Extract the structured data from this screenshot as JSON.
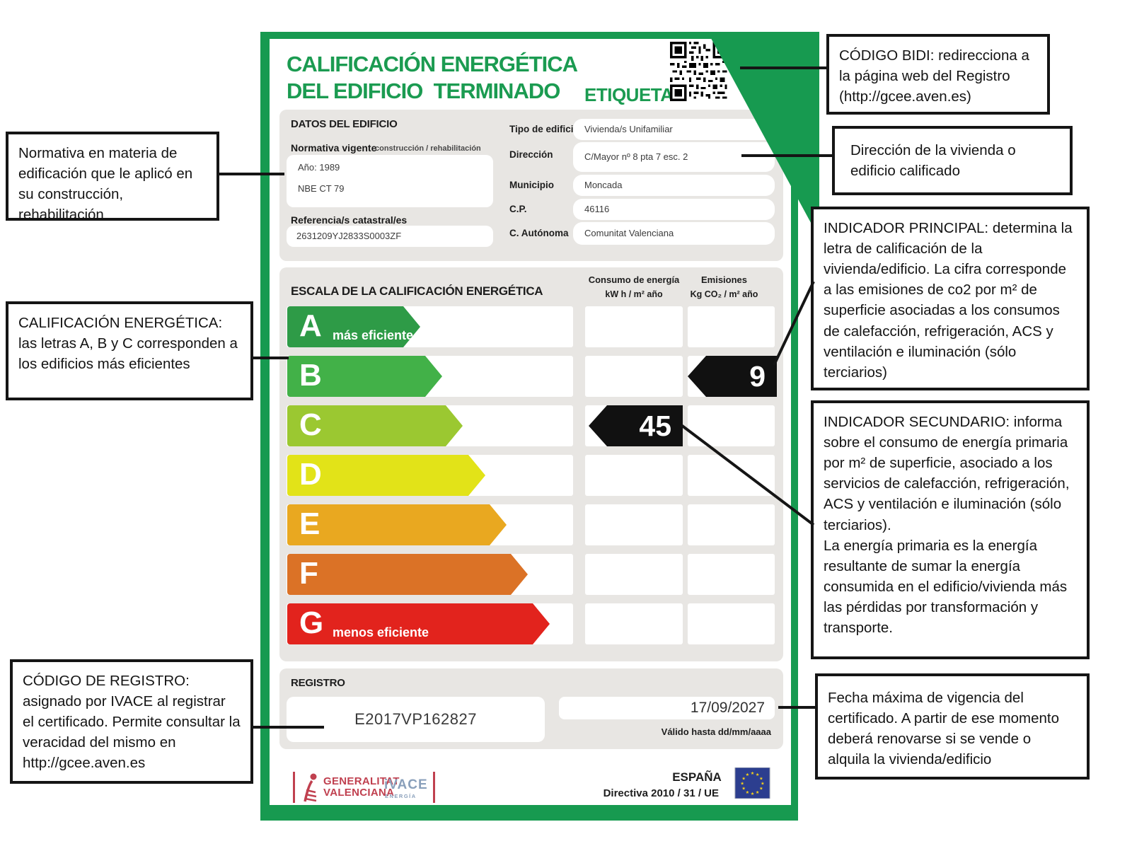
{
  "certificate": {
    "title_line1": "CALIFICACIÓN ENERGÉTICA",
    "title_line2": "DEL EDIFICIO  TERMINADO",
    "etiqueta_label": "ETIQUETA",
    "datos": {
      "heading": "DATOS DEL EDIFICIO",
      "normativa_label": "Normativa vigente",
      "normativa_sublabel": "construcción / rehabilitación",
      "normativa_year": "Año: 1989",
      "normativa_code": "NBE CT 79",
      "referencia_label": "Referencia/s catastral/es",
      "referencia_value": "2631209YJ2833S0003ZF",
      "fields": [
        {
          "label": "Tipo de edificio",
          "value": "Vivienda/s Unifamiliar"
        },
        {
          "label": "Dirección",
          "value": "C/Mayor nº 8 pta 7 esc. 2"
        },
        {
          "label": "Municipio",
          "value": "Moncada"
        },
        {
          "label": "C.P.",
          "value": "46116"
        },
        {
          "label": "C. Autónoma",
          "value": "Comunitat Valenciana"
        }
      ]
    },
    "scale": {
      "heading": "ESCALA DE LA CALIFICACIÓN ENERGÉTICA",
      "consumo_title": "Consumo de energía",
      "consumo_units": "kW h / m² año",
      "emisiones_title": "Emisiones",
      "emisiones_units": "Kg CO₂ / m²  año",
      "rows": [
        {
          "letter": "A",
          "note": "más eficiente",
          "color": "#2e9b47"
        },
        {
          "letter": "B",
          "color": "#42b148"
        },
        {
          "letter": "C",
          "color": "#9bc831"
        },
        {
          "letter": "D",
          "color": "#e2e318"
        },
        {
          "letter": "E",
          "color": "#e9a820"
        },
        {
          "letter": "F",
          "color": "#db7226"
        },
        {
          "letter": "G",
          "note": "menos eficiente",
          "color": "#e2231d"
        }
      ],
      "indicators": {
        "emisiones": {
          "row": "B",
          "value": "9"
        },
        "consumo": {
          "row": "C",
          "value": "45"
        }
      }
    },
    "registro": {
      "heading": "REGISTRO",
      "code": "E2017VP162827",
      "valid_until_date": "17/09/2027",
      "valid_until_note": "Válido hasta dd/mm/aaaa"
    },
    "footer": {
      "generalitat_line1": "GENERALITAT",
      "generalitat_line2": "VALENCIANA",
      "ivace": "iVACE",
      "ivace_sub": "ENERGÍA",
      "espana": "ESPAÑA",
      "directiva": "Directiva 2010 / 31 / UE"
    }
  },
  "callouts": {
    "normativa": "Normativa en materia de edificación que le aplicó en su construcción, rehabilitación",
    "calificacion": "CALIFICACIÓN ENERGÉTICA: las letras A, B y C corresponden a los edificios más eficientes",
    "codigo_registro": "CÓDIGO DE REGISTRO: asignado por IVACE al registrar el certificado. Permite consultar la veracidad del mismo en http://gcee.aven.es",
    "codigo_bidi": "CÓDIGO BIDI: redirecciona a la página web del Registro (http://gcee.aven.es)",
    "direccion": "Dirección de la vivienda o edificio calificado",
    "indicador_principal": "INDICADOR PRINCIPAL: determina la letra de calificación de la vivienda/edificio. La cifra corresponde a las emisiones de co2 por m² de superficie asociadas a los consumos de calefacción, refrigeración, ACS y ventilación e iluminación (sólo terciarios)",
    "indicador_secundario": "INDICADOR SECUNDARIO: informa sobre el consumo de energía primaria por m² de superficie, asociado a los servicios de calefacción, refrigeración, ACS y ventilación e iluminación (sólo terciarios).\nLa energía primaria es la energía resultante de sumar la energía consumida en el edificio/vivienda más las pérdidas por transformación y transporte.",
    "fecha": "Fecha máxima de vigencia del certificado. A partir de ese momento deberá renovarse si se vende o alquila la vivienda/edificio"
  },
  "colors": {
    "frame_green": "#179a50",
    "title_green": "#1b9b51",
    "indicator_black": "#111111",
    "callout_border": "#151515",
    "eu_flag_blue": "#2c3e8f",
    "eu_star_yellow": "#f7d21a",
    "generalitat_red": "#c0404f"
  }
}
